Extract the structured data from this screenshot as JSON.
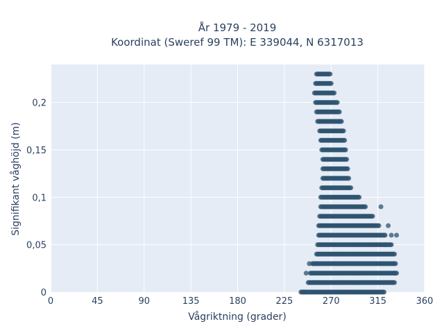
{
  "chart_data": {
    "type": "scatter",
    "title_line1": "År 1979 - 2019",
    "title_line2": "Koordinat (Sweref 99 TM): E 339044, N 6317013",
    "xlabel": "Vågriktning (grader)",
    "ylabel": "Signifikant våghöjd (m)",
    "xlim": [
      0,
      360
    ],
    "ylim": [
      0,
      0.24
    ],
    "xticks": [
      0,
      45,
      90,
      135,
      180,
      225,
      270,
      315,
      360
    ],
    "xtick_labels": [
      "0",
      "45",
      "90",
      "135",
      "180",
      "225",
      "270",
      "315",
      "360"
    ],
    "yticks": [
      0,
      0.05,
      0.1,
      0.15,
      0.2
    ],
    "ytick_labels": [
      "0",
      "0,05",
      "0,1",
      "0,15",
      "0,2"
    ],
    "grid": true,
    "marker_color": "#2f5470",
    "bands": [
      {
        "y": 0.23,
        "x_min": 256,
        "x_max": 269
      },
      {
        "y": 0.22,
        "x_min": 255,
        "x_max": 270
      },
      {
        "y": 0.21,
        "x_min": 254,
        "x_max": 273
      },
      {
        "y": 0.2,
        "x_min": 255,
        "x_max": 276
      },
      {
        "y": 0.19,
        "x_min": 256,
        "x_max": 278
      },
      {
        "y": 0.18,
        "x_min": 257,
        "x_max": 280
      },
      {
        "y": 0.17,
        "x_min": 259,
        "x_max": 282
      },
      {
        "y": 0.16,
        "x_min": 260,
        "x_max": 283
      },
      {
        "y": 0.15,
        "x_min": 261,
        "x_max": 284
      },
      {
        "y": 0.14,
        "x_min": 262,
        "x_max": 285
      },
      {
        "y": 0.13,
        "x_min": 262,
        "x_max": 286
      },
      {
        "y": 0.12,
        "x_min": 262,
        "x_max": 287
      },
      {
        "y": 0.11,
        "x_min": 261,
        "x_max": 289
      },
      {
        "y": 0.1,
        "x_min": 260,
        "x_max": 297
      },
      {
        "y": 0.09,
        "x_min": 260,
        "x_max": 303
      },
      {
        "y": 0.08,
        "x_min": 259,
        "x_max": 310
      },
      {
        "y": 0.07,
        "x_min": 258,
        "x_max": 316
      },
      {
        "y": 0.06,
        "x_min": 258,
        "x_max": 322
      },
      {
        "y": 0.05,
        "x_min": 257,
        "x_max": 328
      },
      {
        "y": 0.04,
        "x_min": 256,
        "x_max": 331
      },
      {
        "y": 0.03,
        "x_min": 252,
        "x_max": 332
      },
      {
        "y": 0.02,
        "x_min": 250,
        "x_max": 333
      },
      {
        "y": 0.01,
        "x_min": 248,
        "x_max": 331
      },
      {
        "y": 0.0,
        "x_min": 241,
        "x_max": 321
      }
    ],
    "outliers": [
      {
        "x": 325,
        "y": 0.07
      },
      {
        "x": 328,
        "y": 0.06
      },
      {
        "x": 333,
        "y": 0.06
      },
      {
        "x": 322,
        "y": 0.05
      },
      {
        "x": 331,
        "y": 0.02
      },
      {
        "x": 249,
        "y": 0.03
      },
      {
        "x": 246,
        "y": 0.02
      },
      {
        "x": 244,
        "y": 0.0
      },
      {
        "x": 318,
        "y": 0.09
      }
    ]
  }
}
